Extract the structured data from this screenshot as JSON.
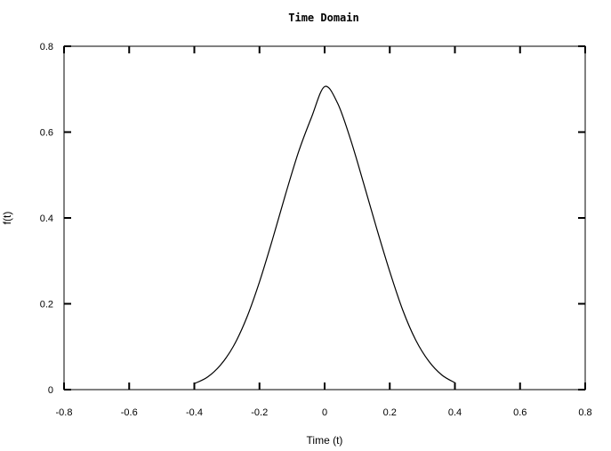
{
  "chart_data": {
    "type": "line",
    "title": "Time Domain",
    "xlabel": "Time (t)",
    "ylabel": "f(t)",
    "xlim": [
      -0.8,
      0.8
    ],
    "ylim": [
      0,
      0.8
    ],
    "x_ticks": [
      "-0.8",
      "-0.6",
      "-0.4",
      "-0.2",
      "0",
      "0.2",
      "0.4",
      "0.6",
      "0.8"
    ],
    "y_ticks": [
      "0",
      "0.2",
      "0.4",
      "0.6",
      "0.8"
    ],
    "grid": false,
    "series": [
      {
        "color": "#000000",
        "x": [
          -0.4,
          -0.36,
          -0.32,
          -0.28,
          -0.24,
          -0.2,
          -0.16,
          -0.12,
          -0.08,
          -0.04,
          0.0,
          0.04,
          0.08,
          0.12,
          0.16,
          0.2,
          0.24,
          0.28,
          0.32,
          0.36,
          0.4
        ],
        "y": [
          0.014,
          0.029,
          0.057,
          0.101,
          0.166,
          0.251,
          0.35,
          0.455,
          0.554,
          0.635,
          0.706,
          0.667,
          0.582,
          0.48,
          0.375,
          0.275,
          0.185,
          0.115,
          0.066,
          0.034,
          0.016
        ]
      }
    ]
  }
}
